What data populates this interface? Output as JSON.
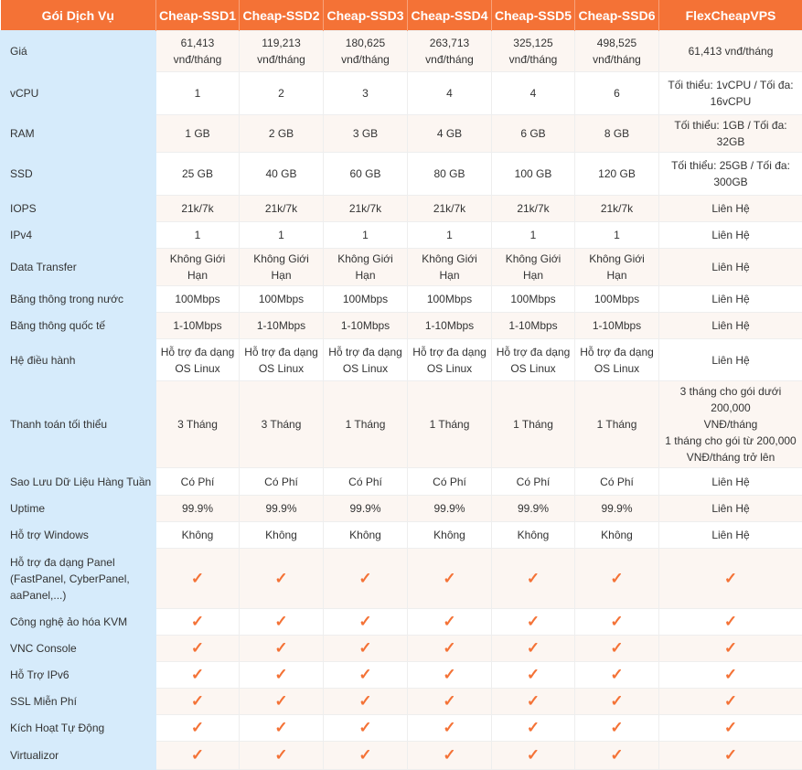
{
  "accent_color": "#f47236",
  "header": [
    "Gói Dịch Vụ",
    "Cheap-SSD1",
    "Cheap-SSD2",
    "Cheap-SSD3",
    "Cheap-SSD4",
    "Cheap-SSD5",
    "Cheap-SSD6",
    "FlexCheapVPS"
  ],
  "check_icon": "✓",
  "rows": [
    {
      "label": "Giá",
      "cells": [
        "61,413\nvnđ/tháng",
        "119,213\nvnđ/tháng",
        "180,625\nvnđ/tháng",
        "263,713\nvnđ/tháng",
        "325,125\nvnđ/tháng",
        "498,525\nvnđ/tháng",
        "61,413 vnđ/tháng"
      ]
    },
    {
      "label": "vCPU",
      "cells": [
        "1",
        "2",
        "3",
        "4",
        "4",
        "6",
        "Tối thiểu: 1vCPU / Tối đa:\n16vCPU"
      ]
    },
    {
      "label": "RAM",
      "cells": [
        "1 GB",
        "2 GB",
        "3 GB",
        "4 GB",
        "6 GB",
        "8 GB",
        "Tối thiểu: 1GB / Tối đa: 32GB"
      ]
    },
    {
      "label": "SSD",
      "cells": [
        "25 GB",
        "40 GB",
        "60 GB",
        "80 GB",
        "100 GB",
        "120 GB",
        "Tối thiểu: 25GB / Tối đa:\n300GB"
      ]
    },
    {
      "label": "IOPS",
      "cells": [
        "21k/7k",
        "21k/7k",
        "21k/7k",
        "21k/7k",
        "21k/7k",
        "21k/7k",
        "Liên Hệ"
      ]
    },
    {
      "label": "IPv4",
      "cells": [
        "1",
        "1",
        "1",
        "1",
        "1",
        "1",
        "Liên Hệ"
      ]
    },
    {
      "label": "Data Transfer",
      "cells": [
        "Không Giới Hạn",
        "Không Giới Hạn",
        "Không Giới Hạn",
        "Không Giới Hạn",
        "Không Giới Hạn",
        "Không Giới Hạn",
        "Liên Hệ"
      ]
    },
    {
      "label": "Băng thông trong nước",
      "cells": [
        "100Mbps",
        "100Mbps",
        "100Mbps",
        "100Mbps",
        "100Mbps",
        "100Mbps",
        "Liên Hệ"
      ]
    },
    {
      "label": "Băng thông quốc tế",
      "cells": [
        "1-10Mbps",
        "1-10Mbps",
        "1-10Mbps",
        "1-10Mbps",
        "1-10Mbps",
        "1-10Mbps",
        "Liên Hệ"
      ]
    },
    {
      "label": "Hệ điều hành",
      "cells": [
        "Hỗ trợ đa dạng\nOS Linux",
        "Hỗ trợ đa dạng\nOS Linux",
        "Hỗ trợ đa dạng\nOS Linux",
        "Hỗ trợ đa dạng\nOS Linux",
        "Hỗ trợ đa dạng\nOS Linux",
        "Hỗ trợ đa dạng\nOS Linux",
        "Liên Hệ"
      ]
    },
    {
      "label": "Thanh toán tối thiểu",
      "cells": [
        "3 Tháng",
        "3 Tháng",
        "1 Tháng",
        "1 Tháng",
        "1 Tháng",
        "1 Tháng",
        "3 tháng cho gói dưới 200,000\nVNĐ/tháng\n1 tháng cho gói từ 200,000\nVNĐ/tháng trở lên"
      ]
    },
    {
      "label": "Sao Lưu Dữ Liệu Hàng Tuần",
      "cells": [
        "Có Phí",
        "Có Phí",
        "Có Phí",
        "Có Phí",
        "Có Phí",
        "Có Phí",
        "Liên Hệ"
      ]
    },
    {
      "label": "Uptime",
      "cells": [
        "99.9%",
        "99.9%",
        "99.9%",
        "99.9%",
        "99.9%",
        "99.9%",
        "Liên Hệ"
      ]
    },
    {
      "label": "Hỗ trợ Windows",
      "cells": [
        "Không",
        "Không",
        "Không",
        "Không",
        "Không",
        "Không",
        "Liên Hệ"
      ]
    },
    {
      "label": "Hỗ trợ đa dạng Panel\n(FastPanel, CyberPanel,\naaPanel,...)",
      "check": true
    },
    {
      "label": "Công nghệ ảo hóa KVM",
      "check": true
    },
    {
      "label": "VNC Console",
      "check": true
    },
    {
      "label": "Hỗ Trợ IPv6",
      "check": true
    },
    {
      "label": "SSL Miễn Phí",
      "check": true
    },
    {
      "label": "Kích Hoạt Tự Động",
      "check": true
    },
    {
      "label": "Virtualizor",
      "check": true
    }
  ]
}
